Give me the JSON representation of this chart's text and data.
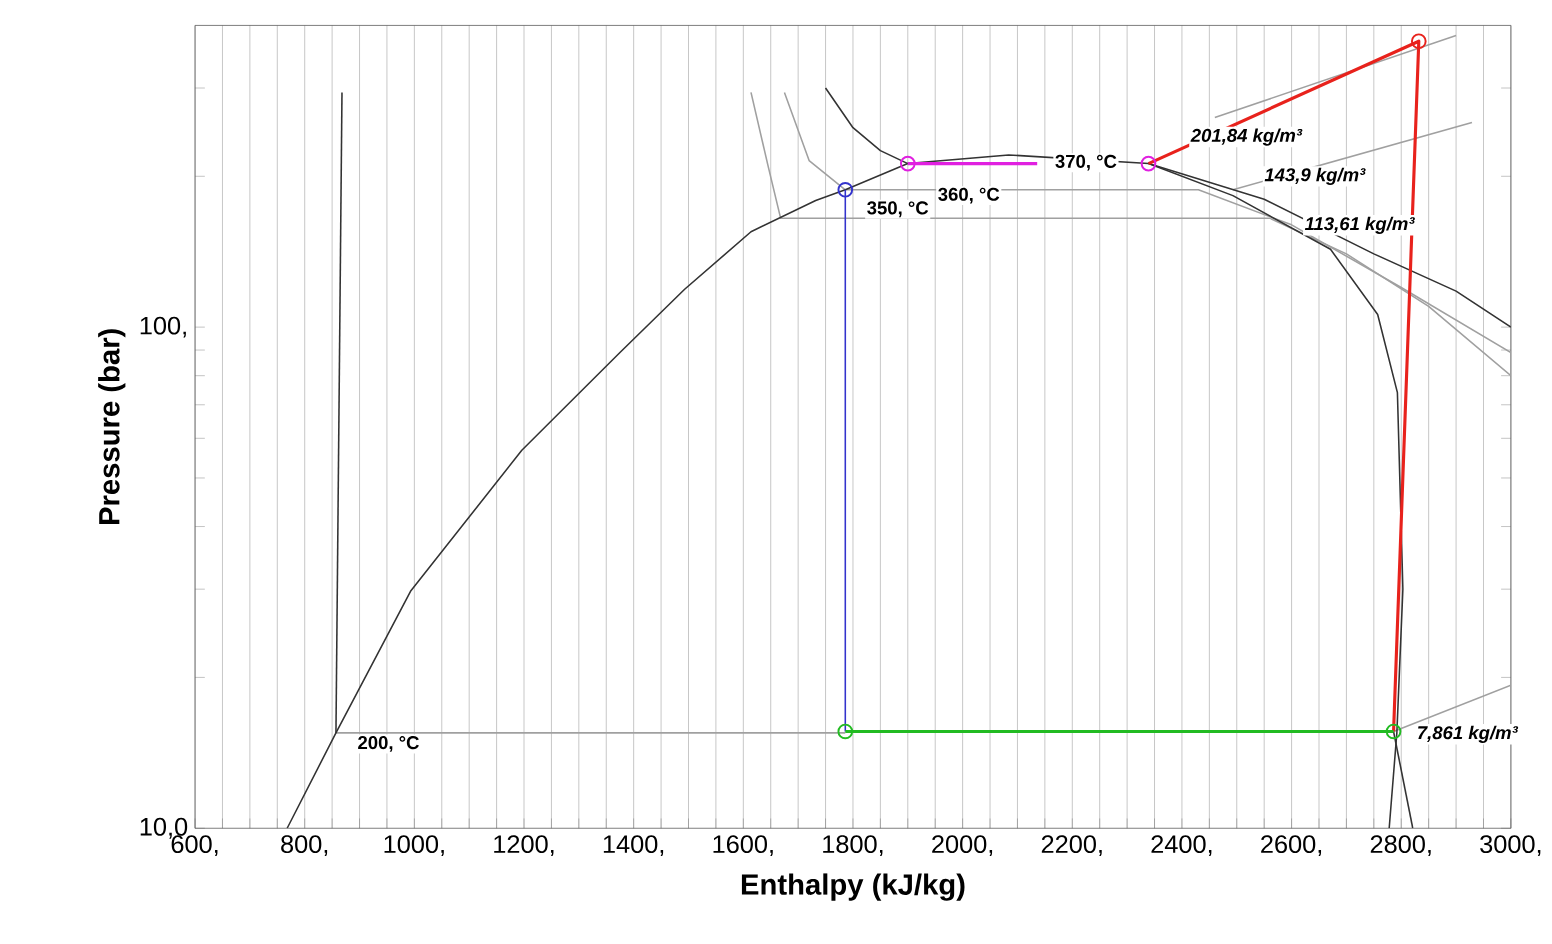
{
  "chart_data": {
    "type": "line",
    "xlabel": "Enthalpy (kJ/kg)",
    "ylabel": "Pressure (bar)",
    "log": "y",
    "grid": "x",
    "marker": "none",
    "xlim": [
      600,
      3000
    ],
    "ylim": [
      10,
      400
    ],
    "xticks": [
      {
        "value": 600,
        "label": "600,"
      },
      {
        "value": 650,
        "label": null
      },
      {
        "value": 700,
        "label": null
      },
      {
        "value": 750,
        "label": null
      },
      {
        "value": 800,
        "label": "800,"
      },
      {
        "value": 850,
        "label": null
      },
      {
        "value": 900,
        "label": null
      },
      {
        "value": 950,
        "label": null
      },
      {
        "value": 1000,
        "label": "1000,"
      },
      {
        "value": 1050,
        "label": null
      },
      {
        "value": 1100,
        "label": null
      },
      {
        "value": 1150,
        "label": null
      },
      {
        "value": 1200,
        "label": "1200,"
      },
      {
        "value": 1250,
        "label": null
      },
      {
        "value": 1300,
        "label": null
      },
      {
        "value": 1350,
        "label": null
      },
      {
        "value": 1400,
        "label": "1400,"
      },
      {
        "value": 1450,
        "label": null
      },
      {
        "value": 1500,
        "label": null
      },
      {
        "value": 1550,
        "label": null
      },
      {
        "value": 1600,
        "label": "1600,"
      },
      {
        "value": 1650,
        "label": null
      },
      {
        "value": 1700,
        "label": null
      },
      {
        "value": 1750,
        "label": null
      },
      {
        "value": 1800,
        "label": "1800,"
      },
      {
        "value": 1850,
        "label": null
      },
      {
        "value": 1900,
        "label": null
      },
      {
        "value": 1950,
        "label": null
      },
      {
        "value": 2000,
        "label": "2000,"
      },
      {
        "value": 2050,
        "label": null
      },
      {
        "value": 2100,
        "label": null
      },
      {
        "value": 2150,
        "label": null
      },
      {
        "value": 2200,
        "label": "2200,"
      },
      {
        "value": 2250,
        "label": null
      },
      {
        "value": 2300,
        "label": null
      },
      {
        "value": 2350,
        "label": null
      },
      {
        "value": 2400,
        "label": "2400,"
      },
      {
        "value": 2450,
        "label": null
      },
      {
        "value": 2500,
        "label": null
      },
      {
        "value": 2550,
        "label": null
      },
      {
        "value": 2600,
        "label": "2600,"
      },
      {
        "value": 2650,
        "label": null
      },
      {
        "value": 2700,
        "label": null
      },
      {
        "value": 2750,
        "label": null
      },
      {
        "value": 2800,
        "label": "2800,"
      },
      {
        "value": 2850,
        "label": null
      },
      {
        "value": 2900,
        "label": null
      },
      {
        "value": 2950,
        "label": null
      },
      {
        "value": 3000,
        "label": "3000,"
      }
    ],
    "yticks": [
      {
        "value": 10,
        "label": "10,0"
      },
      {
        "value": 20,
        "label": null
      },
      {
        "value": 30,
        "label": null
      },
      {
        "value": 40,
        "label": null
      },
      {
        "value": 50,
        "label": null
      },
      {
        "value": 60,
        "label": null
      },
      {
        "value": 70,
        "label": null
      },
      {
        "value": 80,
        "label": null
      },
      {
        "value": 90,
        "label": null
      },
      {
        "value": 100,
        "label": "100,"
      },
      {
        "value": 200,
        "label": null
      },
      {
        "value": 300,
        "label": null
      }
    ],
    "series": [
      {
        "color": "#a0a0a0",
        "x": [
          857,
          1786
        ],
        "values": [
          15.5,
          15.5
        ]
      },
      {
        "type": "line",
        "color": "#a0a0a0",
        "x": [
          1614,
          1645,
          1668,
          2560,
          2700,
          2850,
          3000
        ],
        "values": [
          294,
          210,
          165,
          165,
          140,
          110,
          80
        ]
      },
      {
        "type": "line",
        "color": "#a0a0a0",
        "x": [
          1675,
          1720,
          1786,
          2430,
          2600,
          2800,
          3000
        ],
        "values": [
          294,
          215,
          188,
          188,
          160,
          120,
          89
        ]
      },
      {
        "type": "line",
        "color": "#a0a0a0",
        "x": [
          2460,
          2900
        ],
        "values": [
          262,
          382
        ]
      },
      {
        "type": "line",
        "color": "#a0a0a0",
        "x": [
          2493,
          2929
        ],
        "values": [
          188,
          256
        ]
      },
      {
        "type": "line",
        "color": "#a0a0a0",
        "x": [
          2786,
          3000
        ],
        "values": [
          15.6,
          19.3
        ]
      },
      {
        "color": "#333333",
        "x": [
          768,
          857,
          993,
          1196,
          1375,
          1493,
          1614,
          1732,
          1786,
          1900,
          2084,
          2339,
          2493,
          2671,
          2757,
          2793,
          2803,
          2792,
          2778
        ],
        "values": [
          10,
          15.5,
          29.7,
          56.8,
          89,
          119,
          155,
          179,
          188,
          212,
          220.6,
          212,
          183,
          143,
          106,
          74,
          30,
          15.5,
          10
        ]
      },
      {
        "type": "line",
        "color": "#333333",
        "x": [
          868,
          857
        ],
        "values": [
          294,
          15.5
        ]
      },
      {
        "type": "line",
        "color": "#333333",
        "x": [
          2786,
          2821
        ],
        "values": [
          15.6,
          10
        ]
      },
      {
        "type": "line",
        "color": "#333333",
        "x": [
          1750,
          1800,
          1850,
          1900
        ],
        "values": [
          300,
          250,
          225,
          212
        ]
      },
      {
        "type": "line",
        "color": "#333333",
        "x": [
          2339,
          2550,
          2750,
          2900,
          3000
        ],
        "values": [
          212,
          180,
          140,
          118,
          100
        ]
      },
      {
        "type": "line",
        "color": "#3333cc",
        "x": [
          1786,
          1786
        ],
        "values": [
          15.6,
          188
        ]
      },
      {
        "type": "line",
        "color": "#e020e0",
        "x": [
          1900,
          2136
        ],
        "values": [
          212,
          212
        ]
      },
      {
        "type": "line",
        "color": "#e8221c",
        "x": [
          2339,
          2832,
          2786
        ],
        "values": [
          212,
          372,
          15.6
        ]
      },
      {
        "type": "line",
        "color": "#22bb22",
        "x": [
          1786,
          2786
        ],
        "values": [
          15.6,
          15.6
        ]
      },
      {
        "type": "scatter",
        "marker": "circle",
        "x": [
          1786,
          1900,
          2339,
          2832,
          1786,
          2786
        ],
        "values": [
          188,
          212,
          212,
          372,
          15.6,
          15.6
        ],
        "colors": [
          "#3333cc",
          "#e020e0",
          "#e020e0",
          "#e8221c",
          "#22bb22",
          "#22bb22"
        ]
      }
    ],
    "annotations": [
      "200, °C",
      "350, °C",
      "360, °C",
      "370, °C",
      "201,84 kg/m³",
      "143,9 kg/m³",
      "113,61 kg/m³",
      "7,861 kg/m³"
    ]
  }
}
